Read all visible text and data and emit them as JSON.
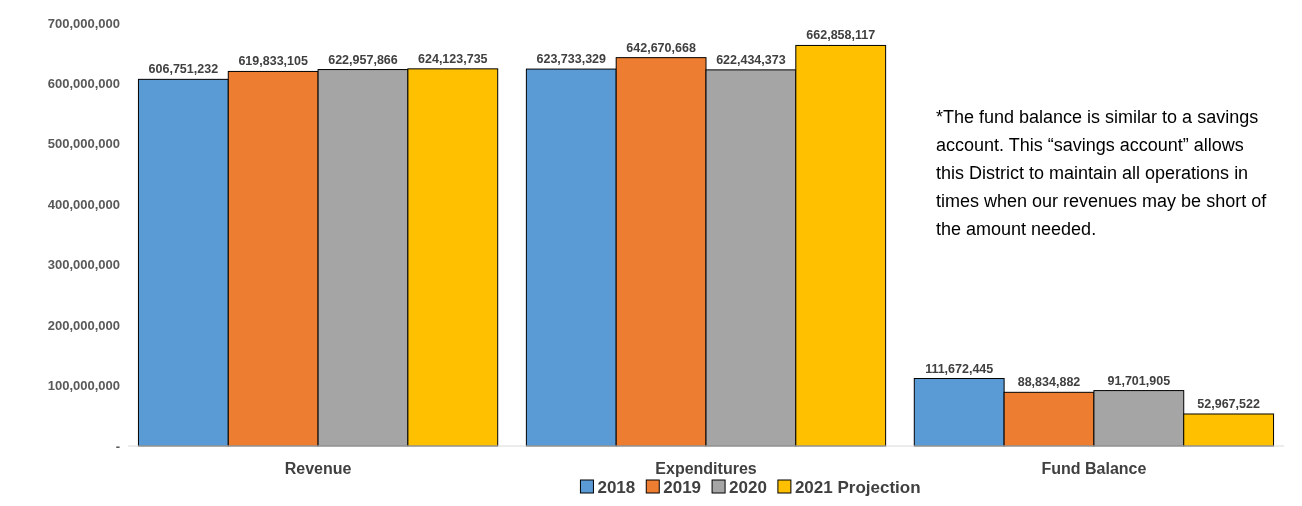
{
  "chart_data": {
    "type": "bar",
    "categories": [
      "Revenue",
      "Expenditures",
      "Fund Balance"
    ],
    "series": [
      {
        "name": "2018",
        "color": "#5b9bd5",
        "values": [
          606751232,
          623733329,
          111672445
        ],
        "value_labels": [
          "606,751,232",
          "623,733,329",
          "111,672,445"
        ]
      },
      {
        "name": "2019",
        "color": "#ed7d31",
        "values": [
          619833105,
          642670668,
          88834882
        ],
        "value_labels": [
          "619,833,105",
          "642,670,668",
          "88,834,882"
        ]
      },
      {
        "name": "2020",
        "color": "#a5a5a5",
        "values": [
          622957866,
          622434373,
          91701905
        ],
        "value_labels": [
          "622,957,866",
          "622,434,373",
          "91,701,905"
        ]
      },
      {
        "name": "2021 Projection",
        "color": "#ffc000",
        "values": [
          624123735,
          662858117,
          52967522
        ],
        "value_labels": [
          "624,123,735",
          "662,858,117",
          "52,967,522"
        ]
      }
    ],
    "ylim": [
      0,
      700000000
    ],
    "yticks": [
      {
        "value": 0,
        "label": "-"
      },
      {
        "value": 100000000,
        "label": "100,000,000"
      },
      {
        "value": 200000000,
        "label": "200,000,000"
      },
      {
        "value": 300000000,
        "label": "300,000,000"
      },
      {
        "value": 400000000,
        "label": "400,000,000"
      },
      {
        "value": 500000000,
        "label": "500,000,000"
      },
      {
        "value": 600000000,
        "label": "600,000,000"
      },
      {
        "value": 700000000,
        "label": "700,000,000"
      }
    ],
    "grid": false,
    "legend": "bottom",
    "annotations": [
      "*The fund balance is similar to a savings account. This “savings account” allows this District to maintain all operations in times when our revenues may be short of the amount needed."
    ]
  }
}
